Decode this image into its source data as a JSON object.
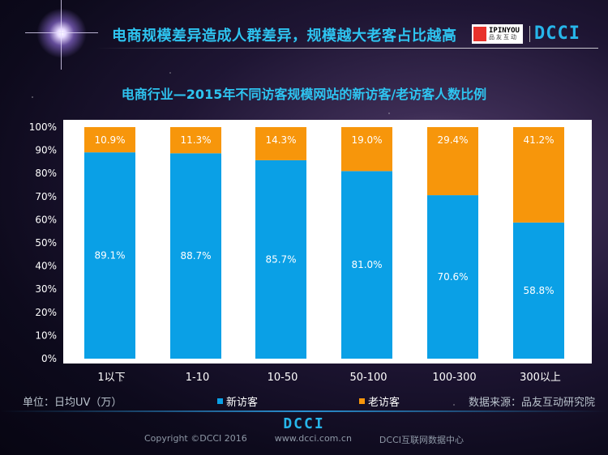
{
  "header": {
    "headline": "电商规模差异造成人群差异，规模越大老客占比越高",
    "logo_pinyou_en": "IPINYOU",
    "logo_pinyou_cn": "品友互动",
    "logo_dcci": "DCCI"
  },
  "colors": {
    "new_visitor": "#0aa0e6",
    "old_visitor": "#f7960b",
    "accent": "#2ec4f0"
  },
  "chart_data": {
    "type": "bar",
    "stacked": true,
    "title": "电商行业—2015年不同访客规模网站的新访客/老访客人数比例",
    "categories": [
      "1以下",
      "1-10",
      "10-50",
      "50-100",
      "100-300",
      "300以上"
    ],
    "series": [
      {
        "name": "新访客",
        "values": [
          89.1,
          88.7,
          85.7,
          81.0,
          70.6,
          58.8
        ]
      },
      {
        "name": "老访客",
        "values": [
          10.9,
          11.3,
          14.3,
          19.0,
          29.4,
          41.2
        ]
      }
    ],
    "value_labels": [
      [
        "89.1%",
        "88.7%",
        "85.7%",
        "81.0%",
        "70.6%",
        "58.8%"
      ],
      [
        "10.9%",
        "11.3%",
        "14.3%",
        "19.0%",
        "29.4%",
        "41.2%"
      ]
    ],
    "yticks": [
      "0%",
      "10%",
      "20%",
      "30%",
      "40%",
      "50%",
      "60%",
      "70%",
      "80%",
      "90%",
      "100%"
    ],
    "ylim": [
      0,
      100
    ],
    "grid": false,
    "legend_placement": "bottom"
  },
  "footer": {
    "unit": "单位：日均UV（万）",
    "source": "数据来源：品友互动研究院",
    "dcci": "DCCI",
    "copyright": "Copyright ©DCCI 2016",
    "url": "www.dcci.com.cn",
    "org": "DCCI互联网数据中心"
  }
}
